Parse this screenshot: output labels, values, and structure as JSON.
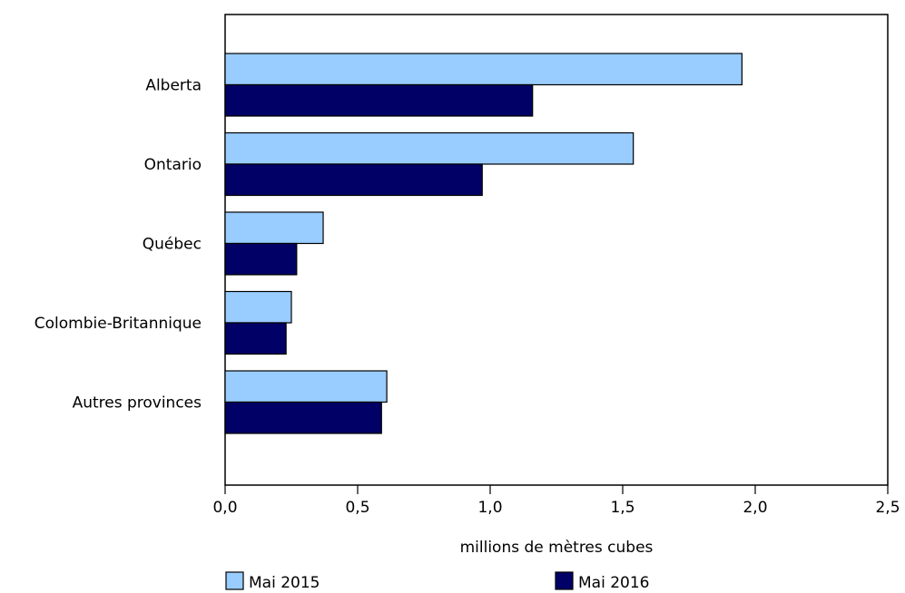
{
  "chart_data": {
    "type": "bar",
    "orientation": "horizontal",
    "title": "",
    "categories": [
      "Alberta",
      "Ontario",
      "Québec",
      "Colombie-Britannique",
      "Autres provinces"
    ],
    "series": [
      {
        "name": "Mai 2015",
        "values": [
          1.95,
          1.54,
          0.37,
          0.25,
          0.61
        ],
        "color": "#99ccff"
      },
      {
        "name": "Mai 2016",
        "values": [
          1.16,
          0.97,
          0.27,
          0.23,
          0.59
        ],
        "color": "#000066"
      }
    ],
    "xlabel": "millions de mètres cubes",
    "ylabel": "",
    "xlim": [
      0,
      2.5
    ],
    "xticks": [
      "0,0",
      "0,5",
      "1,0",
      "1,5",
      "2,0",
      "2,5"
    ],
    "legend_position": "bottom",
    "grid": false
  }
}
